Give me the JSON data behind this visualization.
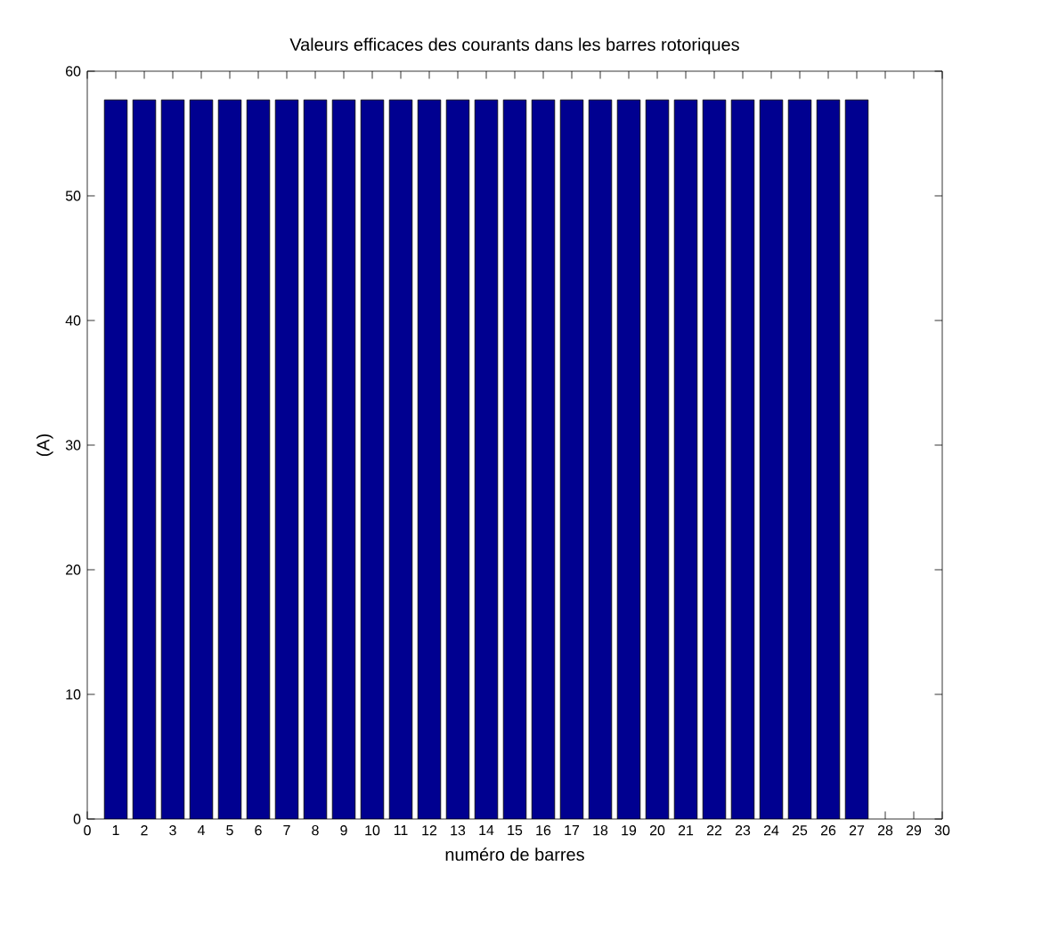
{
  "chart_data": {
    "type": "bar",
    "title": "Valeurs efficaces des courants dans les barres rotoriques",
    "xlabel": "numéro de barres",
    "ylabel": "(A)",
    "x": [
      1,
      2,
      3,
      4,
      5,
      6,
      7,
      8,
      9,
      10,
      11,
      12,
      13,
      14,
      15,
      16,
      17,
      18,
      19,
      20,
      21,
      22,
      23,
      24,
      25,
      26,
      27
    ],
    "values": [
      57.7,
      57.7,
      57.7,
      57.7,
      57.7,
      57.7,
      57.7,
      57.7,
      57.7,
      57.7,
      57.7,
      57.7,
      57.7,
      57.7,
      57.7,
      57.7,
      57.7,
      57.7,
      57.7,
      57.7,
      57.7,
      57.7,
      57.7,
      57.7,
      57.7,
      57.7,
      57.7
    ],
    "color": "#000090",
    "xlim": [
      0,
      30
    ],
    "xticks": [
      0,
      1,
      2,
      3,
      4,
      5,
      6,
      7,
      8,
      9,
      10,
      11,
      12,
      13,
      14,
      15,
      16,
      17,
      18,
      19,
      20,
      21,
      22,
      23,
      24,
      25,
      26,
      27,
      28,
      29,
      30
    ],
    "ylim": [
      0,
      60
    ],
    "yticks": [
      0,
      10,
      20,
      30,
      40,
      50,
      60
    ]
  }
}
